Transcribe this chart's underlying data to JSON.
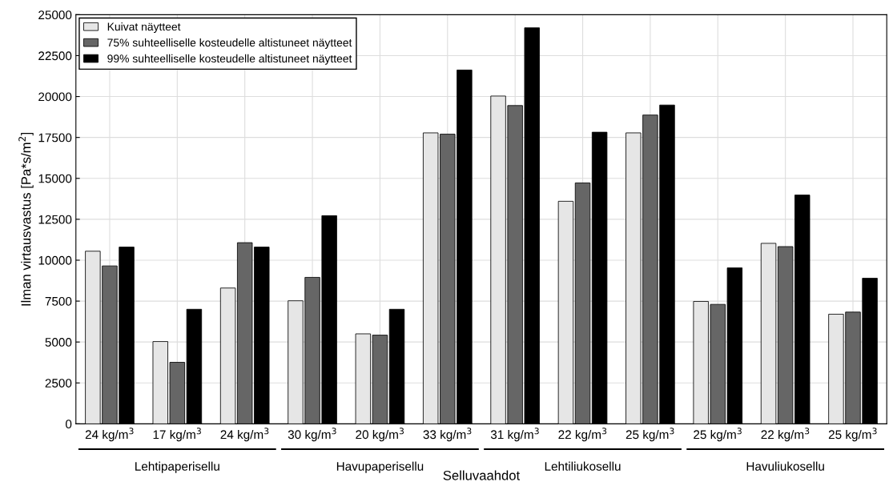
{
  "chart_data": {
    "type": "bar",
    "categories": [
      "24 kg/m$^{3}$",
      "17 kg/m$^{3}$",
      "24 kg/m$^{3}$",
      "30 kg/m$^{3}$",
      "20 kg/m$^{3}$",
      "33 kg/m$^{3}$",
      "31 kg/m$^{3}$",
      "22 kg/m$^{3}$",
      "25 kg/m$^{3}$",
      "25 kg/m$^{3}$",
      "22 kg/m$^{3}$",
      "25 kg/m$^{3}$"
    ],
    "series": [
      {
        "name": "Kuivat näytteet",
        "color": "#e6e6e6",
        "values": [
          10550,
          5030,
          8300,
          7520,
          5500,
          17780,
          20030,
          13600,
          17780,
          7480,
          11030,
          6700
        ]
      },
      {
        "name": "75% suhteelliselle kosteudelle altistuneet näytteet",
        "color": "#666666",
        "values": [
          9650,
          3760,
          11070,
          8950,
          5420,
          17700,
          19450,
          14720,
          18870,
          7300,
          10830,
          6830
        ]
      },
      {
        "name": "99% suhteelliselle kosteudelle altistuneet näytteet",
        "color": "#000000",
        "values": [
          10800,
          7000,
          10800,
          12720,
          7000,
          21620,
          24200,
          17820,
          19480,
          9530,
          13980,
          8900
        ]
      }
    ],
    "xlabel": "Selluvaahdot",
    "ylabel": "Ilman virtausvastus [Pa*s/m$^{2}$]",
    "annotations": [
      "Lehtipaperisellu",
      "Havupaperisellu",
      "Lehtiliukosellu",
      "Havuliukosellu"
    ],
    "ylim": [
      0,
      25000
    ],
    "yticks": [
      0,
      2500,
      5000,
      7500,
      10000,
      12500,
      15000,
      17500,
      20000,
      22500,
      25000
    ],
    "grid": true,
    "legend": "top left"
  }
}
